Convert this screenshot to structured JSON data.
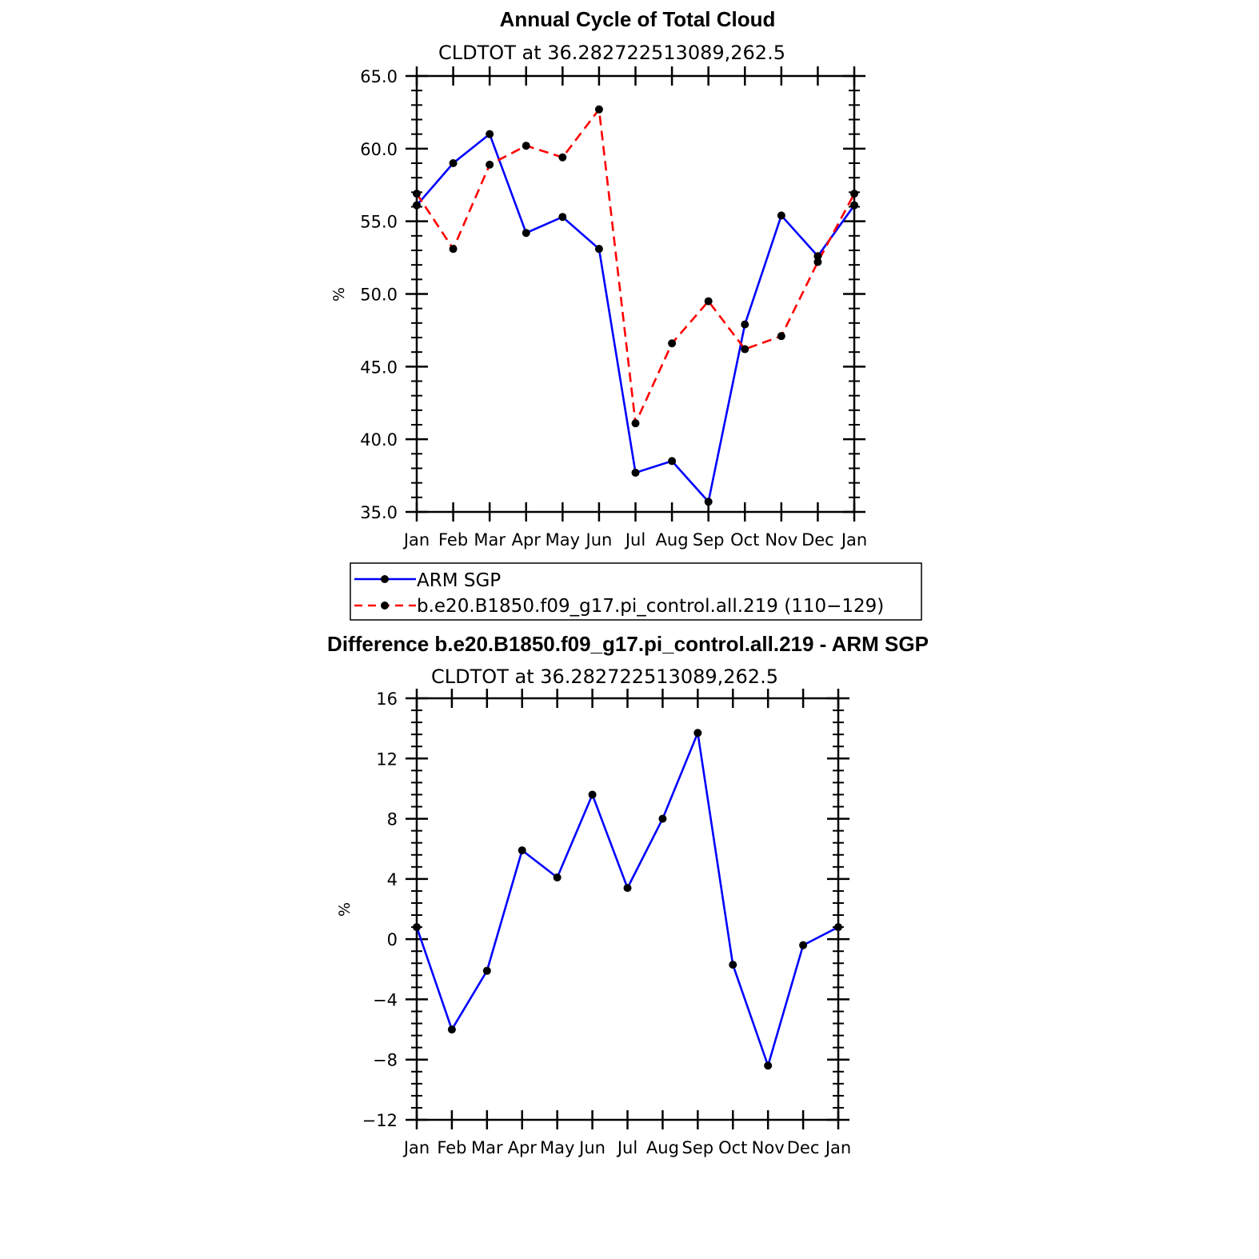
{
  "chart_data": [
    {
      "type": "line",
      "title": "Annual Cycle of Total Cloud",
      "subtitle": "CLDTOT at 36.282722513089,262.5",
      "ylabel": "%",
      "xlabel": "",
      "categories": [
        "Jan",
        "Feb",
        "Mar",
        "Apr",
        "May",
        "Jun",
        "Jul",
        "Aug",
        "Sep",
        "Oct",
        "Nov",
        "Dec",
        "Jan"
      ],
      "ylim": [
        35.0,
        65.0
      ],
      "yticks": [
        "35.0",
        "40.0",
        "45.0",
        "50.0",
        "55.0",
        "60.0",
        "65.0"
      ],
      "yticks_values": [
        35,
        40,
        45,
        50,
        55,
        60,
        65
      ],
      "series": [
        {
          "name": "ARM SGP",
          "color": "#0000ff",
          "style": "solid",
          "values": [
            56.1,
            59.0,
            61.0,
            54.2,
            55.3,
            53.1,
            37.7,
            38.5,
            35.7,
            47.9,
            55.4,
            52.6,
            56.1
          ]
        },
        {
          "name": "b.e20.B1850.f09_g17.pi_control.all.219 (110−129)",
          "color": "#ff0000",
          "style": "dashed",
          "values": [
            56.9,
            53.1,
            58.9,
            60.2,
            59.4,
            62.7,
            41.1,
            46.6,
            49.5,
            46.2,
            47.1,
            52.2,
            56.9
          ]
        }
      ],
      "legend": {
        "position": "below",
        "entries": [
          "ARM SGP",
          "b.e20.B1850.f09_g17.pi_control.all.219 (110−129)"
        ]
      }
    },
    {
      "type": "line",
      "title": "Difference b.e20.B1850.f09_g17.pi_control.all.219 - ARM SGP",
      "subtitle": "CLDTOT at 36.282722513089,262.5",
      "ylabel": "%",
      "xlabel": "",
      "categories": [
        "Jan",
        "Feb",
        "Mar",
        "Apr",
        "May",
        "Jun",
        "Jul",
        "Aug",
        "Sep",
        "Oct",
        "Nov",
        "Dec",
        "Jan"
      ],
      "ylim": [
        -12,
        16
      ],
      "yticks": [
        "−12",
        "−8",
        "−4",
        "0",
        "4",
        "8",
        "12",
        "16"
      ],
      "yticks_values": [
        -12,
        -8,
        -4,
        0,
        4,
        8,
        12,
        16
      ],
      "series": [
        {
          "name": "Difference",
          "color": "#0000ff",
          "style": "solid",
          "values": [
            0.8,
            -6.0,
            -2.1,
            5.9,
            4.1,
            9.6,
            3.4,
            8.0,
            13.7,
            -1.7,
            -8.4,
            -0.4,
            0.8
          ]
        }
      ]
    }
  ]
}
